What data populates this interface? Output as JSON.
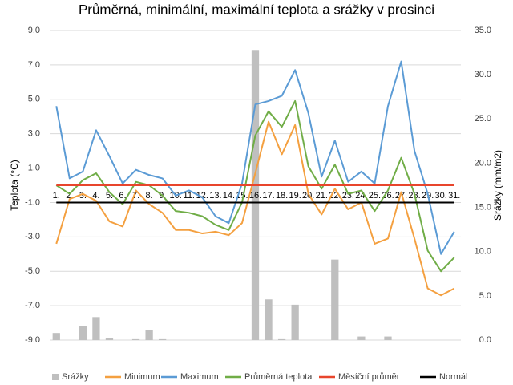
{
  "chart_data": {
    "type": "bar_line",
    "title": "Průměrná, minimální, maximální teplota a srážky v prosinci",
    "y_label": "Teplota (°C)",
    "y2_label": "Srážky (mm/m2)",
    "categories": [
      "1.",
      "2.",
      "3.",
      "4.",
      "5.",
      "6.",
      "7.",
      "8.",
      "9.",
      "10.",
      "11.",
      "12.",
      "13.",
      "14.",
      "15.",
      "16.",
      "17.",
      "18.",
      "19.",
      "20.",
      "21.",
      "22.",
      "23.",
      "24.",
      "25.",
      "26.",
      "27.",
      "28.",
      "29.",
      "30.",
      "31."
    ],
    "ylim": [
      -9,
      9
    ],
    "yticks": [
      {
        "value": -9,
        "label": "-9.0"
      },
      {
        "value": -7,
        "label": "-7.0"
      },
      {
        "value": -5,
        "label": "-5.0"
      },
      {
        "value": -3,
        "label": "-3.0"
      },
      {
        "value": -1,
        "label": "-1.0"
      },
      {
        "value": 1,
        "label": "1.0"
      },
      {
        "value": 3,
        "label": "3.0"
      },
      {
        "value": 5,
        "label": "5.0"
      },
      {
        "value": 7,
        "label": "7.0"
      },
      {
        "value": 9,
        "label": "9.0"
      }
    ],
    "y2lim": [
      0,
      35
    ],
    "y2ticks": [
      {
        "value": 0,
        "label": "0.0"
      },
      {
        "value": 5,
        "label": "5.0"
      },
      {
        "value": 10,
        "label": "10.0"
      },
      {
        "value": 15,
        "label": "15.0"
      },
      {
        "value": 20,
        "label": "20.0"
      },
      {
        "value": 25,
        "label": "25.0"
      },
      {
        "value": 30,
        "label": "30.0"
      },
      {
        "value": 35,
        "label": "35.0"
      }
    ],
    "grid": true,
    "legend": "bottom",
    "series": [
      {
        "name": "Srážky",
        "type": "bar",
        "axis": "y2",
        "color": "#bfbfbf",
        "values": [
          0.8,
          0,
          1.6,
          2.6,
          0.2,
          0,
          0.1,
          1.1,
          0.1,
          0,
          0,
          0,
          0,
          0,
          0,
          32.8,
          4.6,
          0.1,
          4.0,
          0,
          0,
          9.1,
          0,
          0.4,
          0,
          0.4,
          0,
          0,
          0,
          0,
          0
        ]
      },
      {
        "name": "Minimum",
        "type": "line",
        "color": "#f4a040",
        "values": [
          -3.4,
          -0.8,
          -0.5,
          -0.9,
          -2.1,
          -2.4,
          -0.3,
          -1.1,
          -1.6,
          -2.6,
          -2.6,
          -2.8,
          -2.7,
          -2.9,
          -2.2,
          0.7,
          3.7,
          1.8,
          3.5,
          -0.5,
          -1.7,
          -0.2,
          -1.4,
          -1.0,
          -3.4,
          -3.1,
          -0.4,
          -3.1,
          -6.0,
          -6.4,
          -6.0
        ]
      },
      {
        "name": "Maximum",
        "type": "line",
        "color": "#5b9bd5",
        "values": [
          4.6,
          0.4,
          0.8,
          3.2,
          1.7,
          0.1,
          0.9,
          0.6,
          0.4,
          -0.6,
          -0.3,
          -0.7,
          -1.8,
          -2.2,
          0.1,
          4.7,
          4.9,
          5.2,
          6.7,
          4.2,
          0.5,
          2.6,
          0.2,
          0.8,
          0.1,
          4.6,
          7.2,
          2.0,
          -0.5,
          -4.0,
          -2.7
        ]
      },
      {
        "name": "Průměrná teplota",
        "type": "line",
        "color": "#70ad47",
        "values": [
          0,
          -0.5,
          0.3,
          0.7,
          -0.4,
          -1.1,
          0.2,
          0,
          -0.6,
          -1.5,
          -1.6,
          -1.8,
          -2.3,
          -2.6,
          -1.0,
          2.9,
          4.3,
          3.4,
          4.9,
          1.1,
          -0.2,
          1.2,
          -0.5,
          -0.3,
          -1.5,
          -0.3,
          1.6,
          -0.5,
          -3.8,
          -5.0,
          -4.2
        ]
      },
      {
        "name": "Měsíční průměr",
        "type": "line",
        "color": "#e8452c",
        "values": [
          0,
          0,
          0,
          0,
          0,
          0,
          0,
          0,
          0,
          0,
          0,
          0,
          0,
          0,
          0,
          0,
          0,
          0,
          0,
          0,
          0,
          0,
          0,
          0,
          0,
          0,
          0,
          0,
          0,
          0,
          0
        ]
      },
      {
        "name": "Normál",
        "type": "line",
        "color": "#000000",
        "values": [
          -1,
          -1,
          -1,
          -1,
          -1,
          -1,
          -1,
          -1,
          -1,
          -1,
          -1,
          -1,
          -1,
          -1,
          -1,
          -1,
          -1,
          -1,
          -1,
          -1,
          -1,
          -1,
          -1,
          -1,
          -1,
          -1,
          -1,
          -1,
          -1,
          -1,
          -1
        ]
      }
    ]
  }
}
